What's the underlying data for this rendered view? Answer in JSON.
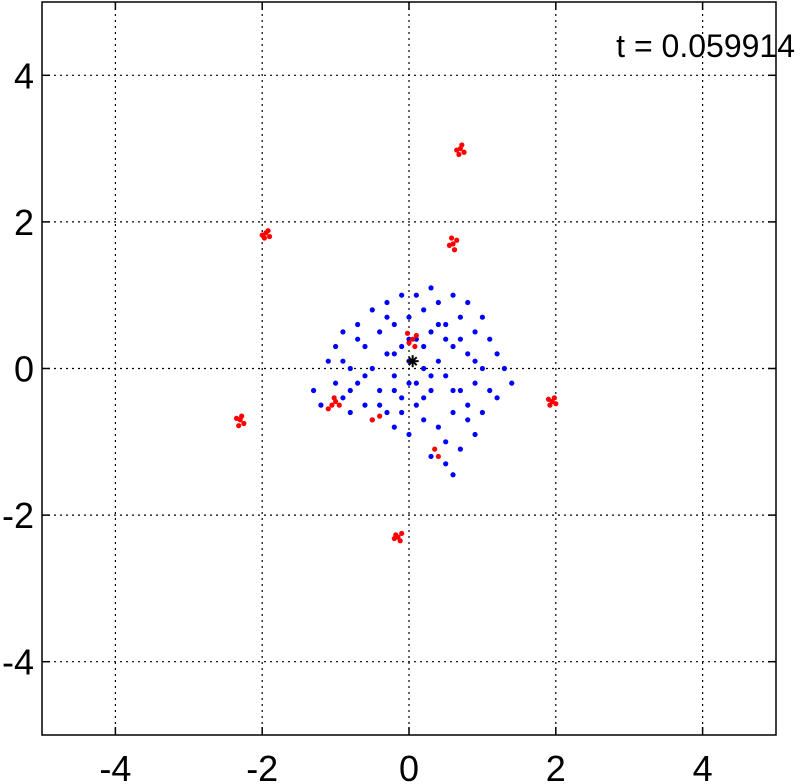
{
  "chart_data": {
    "type": "scatter",
    "annotation": "t = 0.059914",
    "xlim": [
      -5,
      5
    ],
    "ylim": [
      -5,
      5
    ],
    "xticks": [
      -4,
      -2,
      0,
      2,
      4
    ],
    "yticks": [
      -4,
      -2,
      0,
      2,
      4
    ],
    "xtick_labels": [
      "-4",
      "-2",
      "0",
      "2",
      "4"
    ],
    "ytick_labels": [
      "-4",
      "-2",
      "0",
      "2",
      "4"
    ],
    "grid": true,
    "series": [
      {
        "color": "#0000ff",
        "marker": "dot",
        "points": [
          [
            -1.3,
            -0.3
          ],
          [
            -1.2,
            -0.5
          ],
          [
            -1.1,
            0.1
          ],
          [
            -1.0,
            -0.2
          ],
          [
            -1.0,
            0.3
          ],
          [
            -0.9,
            0.5
          ],
          [
            -0.9,
            -0.4
          ],
          [
            -0.8,
            0.0
          ],
          [
            -0.8,
            -0.6
          ],
          [
            -0.7,
            0.6
          ],
          [
            -0.7,
            -0.2
          ],
          [
            -0.6,
            0.3
          ],
          [
            -0.6,
            -0.5
          ],
          [
            -0.5,
            0.8
          ],
          [
            -0.5,
            0.0
          ],
          [
            -0.5,
            -0.7
          ],
          [
            -0.4,
            0.5
          ],
          [
            -0.4,
            -0.3
          ],
          [
            -0.3,
            0.9
          ],
          [
            -0.3,
            0.2
          ],
          [
            -0.3,
            -0.6
          ],
          [
            -0.2,
            0.6
          ],
          [
            -0.2,
            -0.1
          ],
          [
            -0.2,
            -0.8
          ],
          [
            -0.1,
            1.0
          ],
          [
            -0.1,
            0.3
          ],
          [
            -0.1,
            -0.4
          ],
          [
            0.0,
            0.7
          ],
          [
            0.0,
            -0.2
          ],
          [
            0.0,
            -0.9
          ],
          [
            0.1,
            1.0
          ],
          [
            0.1,
            0.4
          ],
          [
            0.1,
            -0.5
          ],
          [
            0.2,
            0.8
          ],
          [
            0.2,
            0.0
          ],
          [
            0.2,
            -0.7
          ],
          [
            0.3,
            1.1
          ],
          [
            0.3,
            0.5
          ],
          [
            0.3,
            -0.3
          ],
          [
            0.4,
            0.9
          ],
          [
            0.4,
            0.1
          ],
          [
            0.4,
            -0.8
          ],
          [
            0.5,
            0.6
          ],
          [
            0.5,
            -0.1
          ],
          [
            0.5,
            -1.0
          ],
          [
            0.6,
            1.0
          ],
          [
            0.6,
            0.3
          ],
          [
            0.6,
            -0.6
          ],
          [
            0.7,
            0.7
          ],
          [
            0.7,
            -0.3
          ],
          [
            0.7,
            -1.1
          ],
          [
            0.8,
            0.9
          ],
          [
            0.8,
            0.2
          ],
          [
            0.8,
            -0.5
          ],
          [
            0.9,
            0.5
          ],
          [
            0.9,
            -0.2
          ],
          [
            0.9,
            -0.9
          ],
          [
            1.0,
            0.7
          ],
          [
            1.0,
            0.0
          ],
          [
            1.0,
            -0.6
          ],
          [
            1.1,
            0.4
          ],
          [
            1.1,
            -0.3
          ],
          [
            1.2,
            0.2
          ],
          [
            1.2,
            -0.4
          ],
          [
            1.3,
            0.0
          ],
          [
            1.4,
            -0.2
          ],
          [
            0.3,
            -1.2
          ],
          [
            0.5,
            -1.3
          ],
          [
            0.6,
            -1.45
          ],
          [
            -0.2,
            0.2
          ],
          [
            -0.6,
            -0.1
          ],
          [
            -0.4,
            -0.5
          ],
          [
            0.2,
            0.3
          ],
          [
            0.0,
            0.1
          ],
          [
            0.5,
            0.4
          ],
          [
            0.8,
            -0.7
          ],
          [
            -0.7,
            0.4
          ],
          [
            -0.9,
            0.1
          ],
          [
            0.3,
            -0.1
          ],
          [
            0.1,
            -0.2
          ],
          [
            -0.1,
            -0.6
          ],
          [
            0.6,
            -0.3
          ],
          [
            0.4,
            0.6
          ],
          [
            -0.3,
            0.7
          ],
          [
            0.7,
            0.4
          ],
          [
            0.9,
            0.1
          ],
          [
            -0.8,
            -0.3
          ],
          [
            -0.2,
            -0.3
          ],
          [
            0.2,
            -0.4
          ],
          [
            0.0,
            0.4
          ]
        ]
      },
      {
        "color": "#ff0000",
        "marker": "dot",
        "points": [
          [
            0.7,
            3.0
          ],
          [
            0.75,
            2.95
          ],
          [
            0.65,
            2.98
          ],
          [
            0.72,
            3.05
          ],
          [
            0.68,
            2.92
          ],
          [
            0.6,
            1.7
          ],
          [
            0.65,
            1.75
          ],
          [
            0.55,
            1.68
          ],
          [
            0.62,
            1.62
          ],
          [
            0.58,
            1.78
          ],
          [
            -1.95,
            1.85
          ],
          [
            -1.9,
            1.8
          ],
          [
            -2.0,
            1.82
          ],
          [
            -1.92,
            1.88
          ],
          [
            -1.97,
            1.78
          ],
          [
            0.05,
            0.4
          ],
          [
            0.1,
            0.45
          ],
          [
            0.0,
            0.35
          ],
          [
            0.08,
            0.3
          ],
          [
            -0.02,
            0.48
          ],
          [
            -1.05,
            -0.5
          ],
          [
            -1.0,
            -0.45
          ],
          [
            -1.1,
            -0.55
          ],
          [
            -1.02,
            -0.4
          ],
          [
            -0.95,
            -0.5
          ],
          [
            -2.3,
            -0.7
          ],
          [
            -2.25,
            -0.75
          ],
          [
            -2.35,
            -0.68
          ],
          [
            -2.28,
            -0.65
          ],
          [
            -2.32,
            -0.78
          ],
          [
            1.95,
            -0.45
          ],
          [
            2.0,
            -0.48
          ],
          [
            1.9,
            -0.42
          ],
          [
            1.98,
            -0.4
          ],
          [
            1.92,
            -0.5
          ],
          [
            -0.15,
            -2.3
          ],
          [
            -0.1,
            -2.25
          ],
          [
            -0.2,
            -2.32
          ],
          [
            -0.12,
            -2.35
          ],
          [
            -0.18,
            -2.27
          ],
          [
            0.35,
            -1.1
          ],
          [
            0.4,
            -1.2
          ],
          [
            -0.4,
            -0.65
          ],
          [
            -0.5,
            -0.7
          ]
        ]
      },
      {
        "color": "#000000",
        "marker": "star",
        "points": [
          [
            0.05,
            0.1
          ]
        ]
      }
    ]
  }
}
